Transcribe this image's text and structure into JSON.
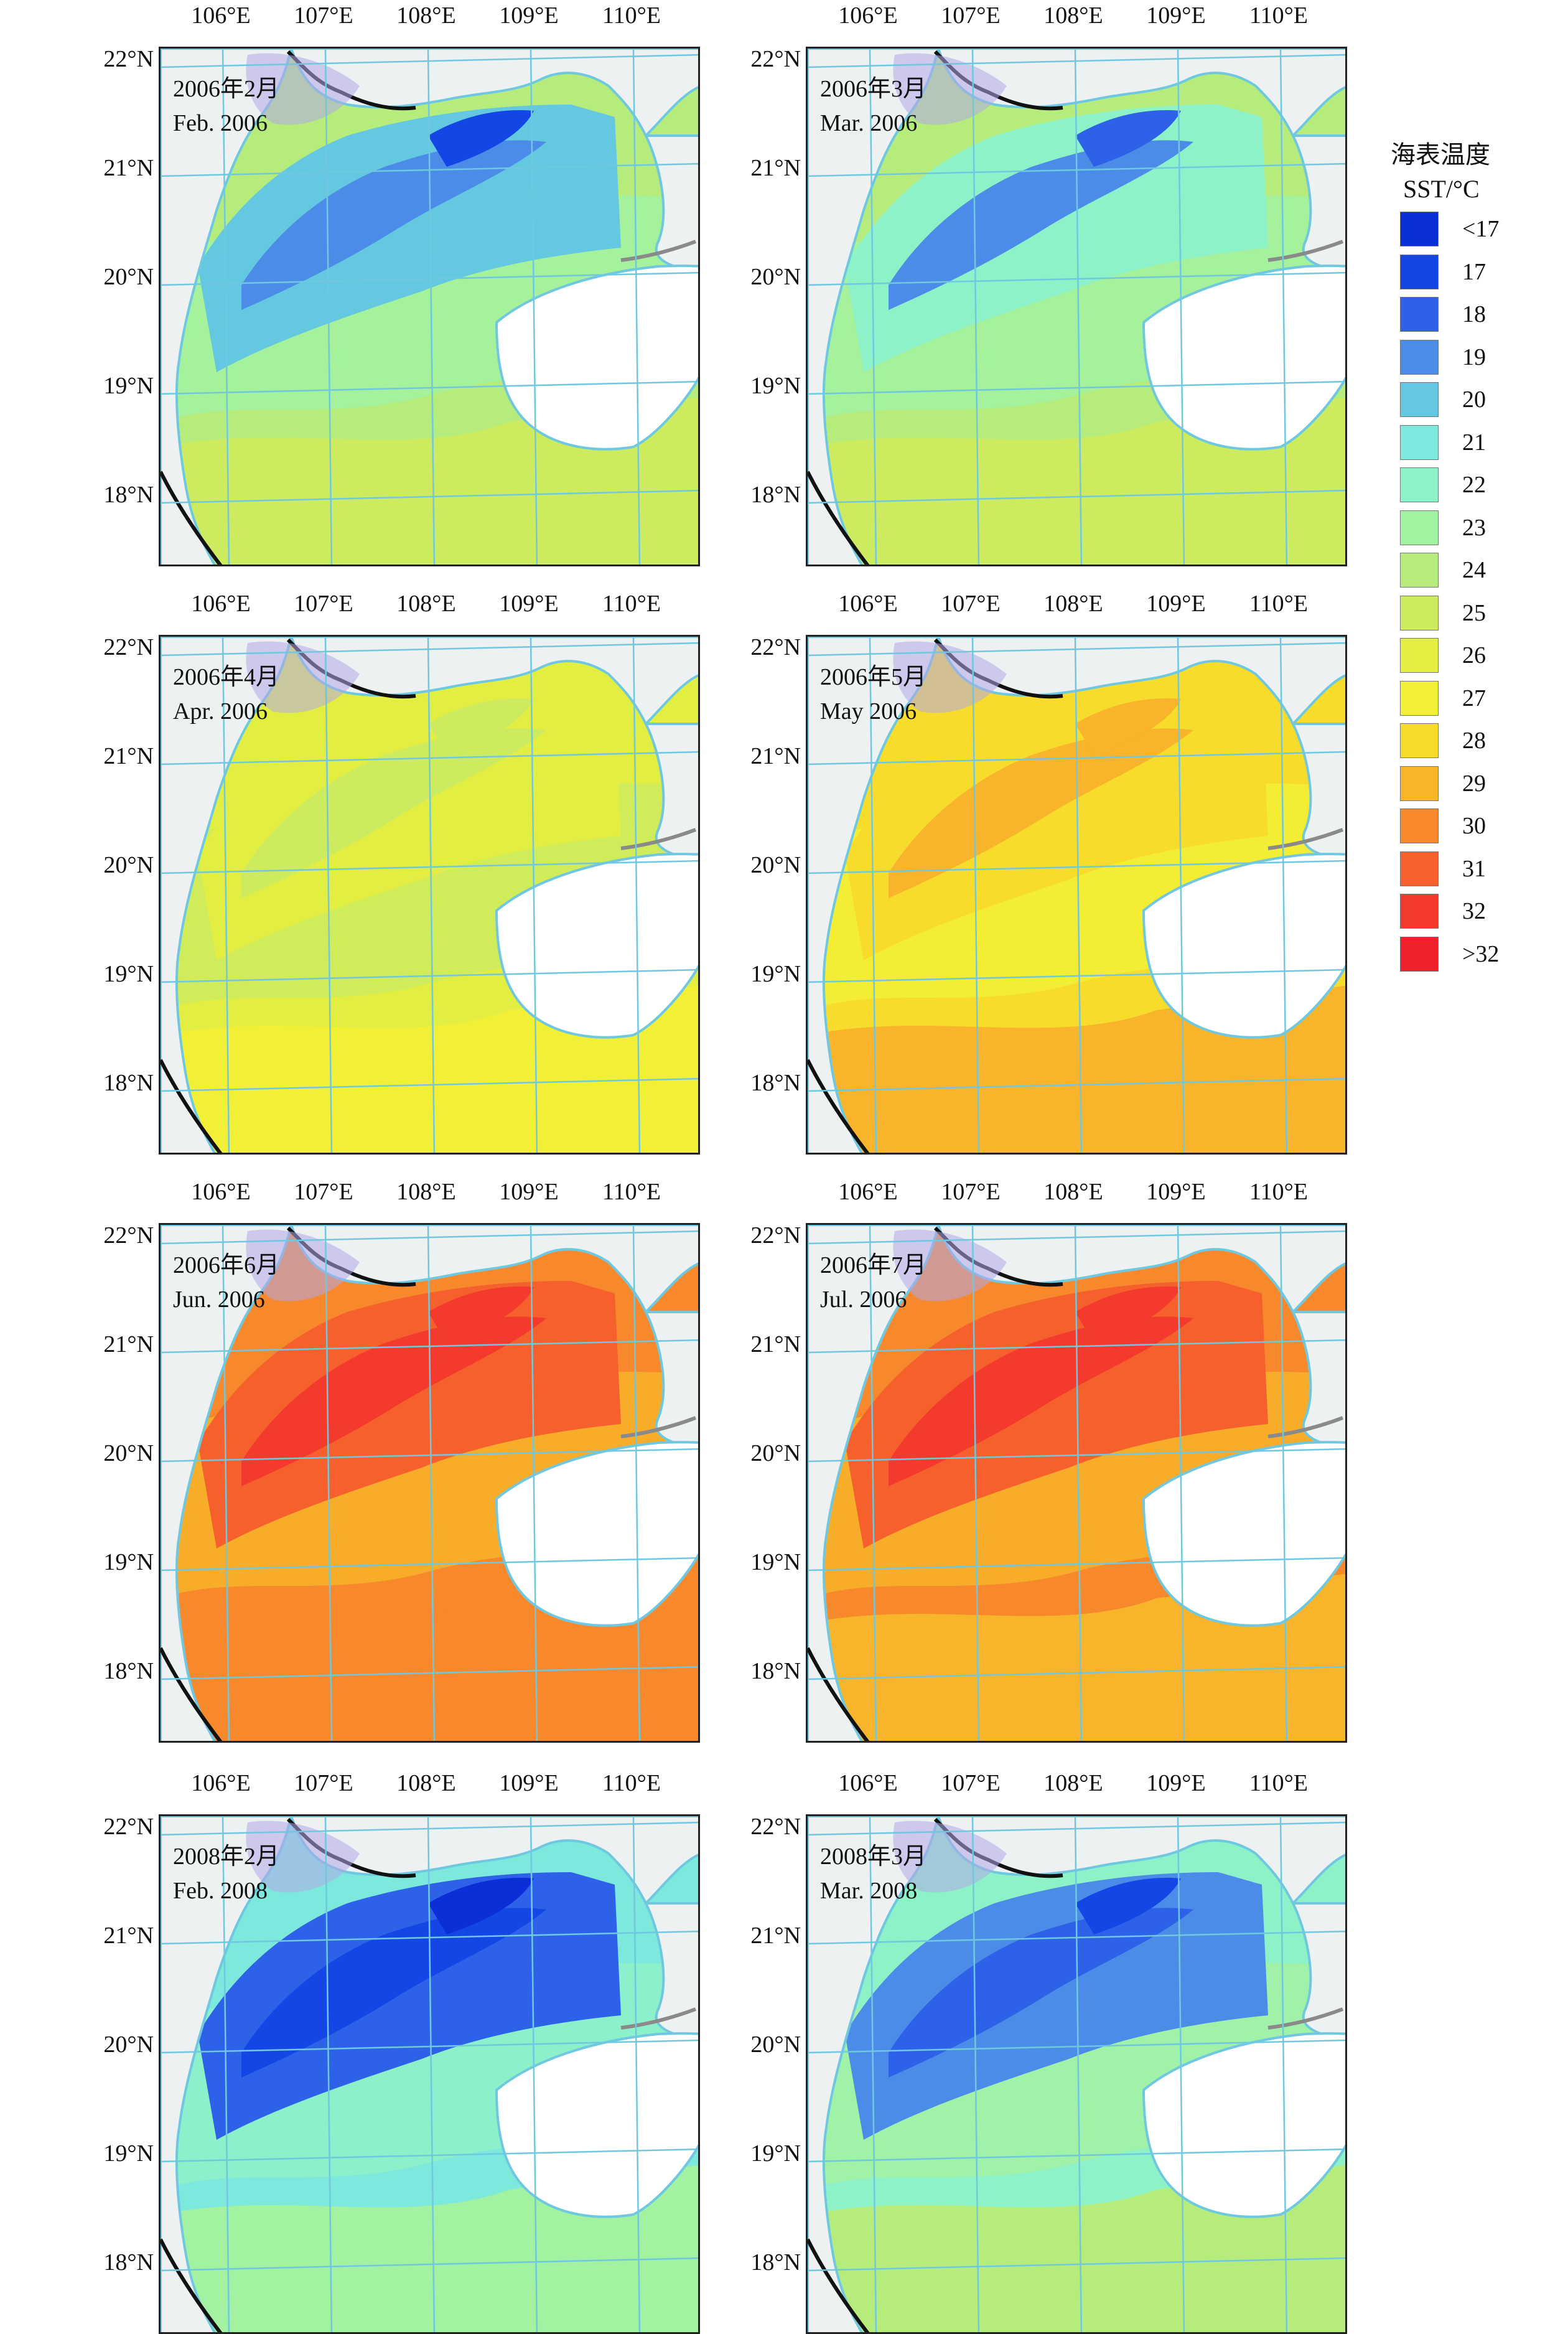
{
  "lon_labels": [
    "106°E",
    "107°E",
    "108°E",
    "109°E",
    "110°E"
  ],
  "lat_labels": [
    "22°N",
    "21°N",
    "20°N",
    "19°N",
    "18°N"
  ],
  "legend": {
    "title": "海表温度",
    "subtitle": "SST/°C",
    "items": [
      {
        "label": "<17",
        "color": "#0a2fd6"
      },
      {
        "label": "17",
        "color": "#1446e6"
      },
      {
        "label": "18",
        "color": "#2d62e8"
      },
      {
        "label": "19",
        "color": "#4b8ce8"
      },
      {
        "label": "20",
        "color": "#63c8e0"
      },
      {
        "label": "21",
        "color": "#7de8dc"
      },
      {
        "label": "22",
        "color": "#8ef2c8"
      },
      {
        "label": "23",
        "color": "#a2f2a2"
      },
      {
        "label": "24",
        "color": "#b6ec7c"
      },
      {
        "label": "25",
        "color": "#cdeb5e"
      },
      {
        "label": "26",
        "color": "#e2ee42"
      },
      {
        "label": "27",
        "color": "#f2f036"
      },
      {
        "label": "28",
        "color": "#f8dc2c"
      },
      {
        "label": "29",
        "color": "#f8b42a"
      },
      {
        "label": "30",
        "color": "#f7882c"
      },
      {
        "label": "31",
        "color": "#f6602c"
      },
      {
        "label": "32",
        "color": "#f43a2c"
      },
      {
        "label": ">32",
        "color": "#f0202c"
      }
    ]
  },
  "panels": [
    {
      "label_cn": "2006年2月",
      "label_en": "Feb. 2006",
      "base": "#b6ec7c",
      "offshore": "#a2f2a2",
      "nearshore": "#63c8e0",
      "core": "#4b8ce8",
      "deep": "#1446e6",
      "south": "#cdeb5e"
    },
    {
      "label_cn": "2006年3月",
      "label_en": "Mar. 2006",
      "base": "#b6ec7c",
      "offshore": "#a2f2a2",
      "nearshore": "#8ef2c8",
      "core": "#4b8ce8",
      "deep": "#2d62e8",
      "south": "#cdeb5e"
    },
    {
      "label_cn": "2006年4月",
      "label_en": "Apr. 2006",
      "base": "#e2ee42",
      "offshore": "#cdeb5e",
      "nearshore": "#e2ee42",
      "core": "#cdeb5e",
      "deep": "#cdeb5e",
      "south": "#f2f036"
    },
    {
      "label_cn": "2006年5月",
      "label_en": "May 2006",
      "base": "#f8dc2c",
      "offshore": "#f2f036",
      "nearshore": "#f8dc2c",
      "core": "#f8b42a",
      "deep": "#f8b42a",
      "south": "#f8b42a"
    },
    {
      "label_cn": "2006年6月",
      "label_en": "Jun. 2006",
      "base": "#f7882c",
      "offshore": "#f8b42a",
      "nearshore": "#f6602c",
      "core": "#f43a2c",
      "deep": "#f43a2c",
      "south": "#f7882c"
    },
    {
      "label_cn": "2006年7月",
      "label_en": "Jul. 2006",
      "base": "#f7882c",
      "offshore": "#f8b42a",
      "nearshore": "#f6602c",
      "core": "#f43a2c",
      "deep": "#f43a2c",
      "south": "#f8b42a"
    },
    {
      "label_cn": "2008年2月",
      "label_en": "Feb. 2008",
      "base": "#7de8dc",
      "offshore": "#8ef2c8",
      "nearshore": "#2d62e8",
      "core": "#1446e6",
      "deep": "#0a2fd6",
      "south": "#a2f2a2"
    },
    {
      "label_cn": "2008年3月",
      "label_en": "Mar. 2008",
      "base": "#8ef2c8",
      "offshore": "#a2f2a2",
      "nearshore": "#4b8ce8",
      "core": "#2d62e8",
      "deep": "#1446e6",
      "south": "#b6ec7c"
    }
  ]
}
